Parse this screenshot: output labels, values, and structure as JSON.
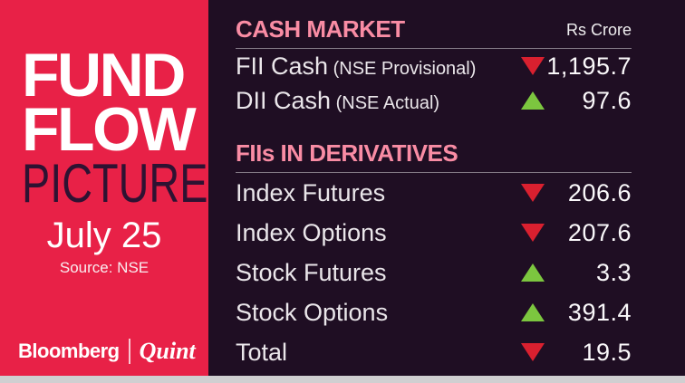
{
  "left_panel": {
    "title_line1": "FUND",
    "title_line2": "FLOW",
    "title_line3": "PICTURE",
    "date": "July 25",
    "source": "Source: NSE",
    "brand": {
      "bloomberg": "Bloomberg",
      "separator": "|",
      "quint": "Quint"
    },
    "bg_color": "#E82147"
  },
  "right_panel": {
    "bg_color": "#1F0E23",
    "unit_label": "Rs Crore",
    "sections": [
      {
        "title": "CASH MARKET",
        "rows": [
          {
            "label": "FII Cash",
            "sublabel": "(NSE Provisional)",
            "direction": "down",
            "value": "1,195.7"
          },
          {
            "label": "DII Cash",
            "sublabel": "(NSE Actual)",
            "direction": "up",
            "value": "97.6"
          }
        ]
      },
      {
        "title": "FIIs IN DERIVATIVES",
        "rows": [
          {
            "label": "Index Futures",
            "direction": "down",
            "value": "206.6"
          },
          {
            "label": "Index Options",
            "direction": "down",
            "value": "207.6"
          },
          {
            "label": "Stock Futures",
            "direction": "up",
            "value": "3.3"
          },
          {
            "label": "Stock Options",
            "direction": "up",
            "value": "391.4"
          },
          {
            "label": "Total",
            "direction": "down",
            "value": "19.5"
          }
        ]
      }
    ],
    "colors": {
      "up_green": "#7CC63F",
      "down_red": "#D9202F",
      "header_pink": "#F98CA4"
    }
  },
  "chart_data": {
    "type": "table",
    "title": "FUND FLOW PICTURE",
    "subtitle": "July 25",
    "source": "Source: NSE",
    "unit": "Rs Crore",
    "sections": [
      {
        "name": "CASH MARKET",
        "rows": [
          {
            "label": "FII Cash (NSE Provisional)",
            "direction": "down",
            "value": 1195.7
          },
          {
            "label": "DII Cash (NSE Actual)",
            "direction": "up",
            "value": 97.6
          }
        ]
      },
      {
        "name": "FIIs IN DERIVATIVES",
        "rows": [
          {
            "label": "Index Futures",
            "direction": "down",
            "value": 206.6
          },
          {
            "label": "Index Options",
            "direction": "down",
            "value": 207.6
          },
          {
            "label": "Stock Futures",
            "direction": "up",
            "value": 3.3
          },
          {
            "label": "Stock Options",
            "direction": "up",
            "value": 391.4
          },
          {
            "label": "Total",
            "direction": "down",
            "value": 19.5
          }
        ]
      }
    ]
  }
}
